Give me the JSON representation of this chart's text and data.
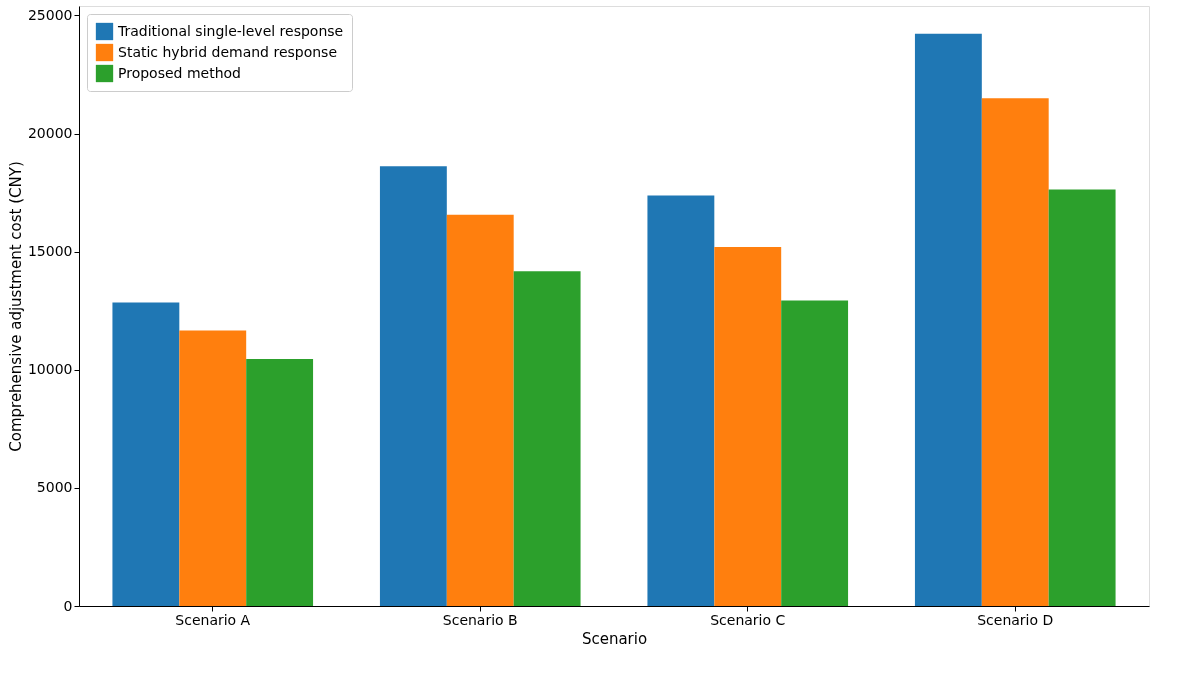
{
  "chart_data": {
    "type": "bar",
    "xlabel": "Scenario",
    "ylabel": "Comprehensive adjustment cost (CNY)",
    "categories": [
      "Scenario A",
      "Scenario B",
      "Scenario C",
      "Scenario D"
    ],
    "series": [
      {
        "name": "Traditional single-level response",
        "color": "#1f77b4",
        "values": [
          12850,
          18620,
          17380,
          24220
        ]
      },
      {
        "name": "Static hybrid demand response",
        "color": "#ff7f0e",
        "values": [
          11660,
          16560,
          15200,
          21500
        ]
      },
      {
        "name": "Proposed method",
        "color": "#2ca02c",
        "values": [
          10460,
          14170,
          12930,
          17630
        ]
      }
    ],
    "ylim": [
      0,
      25400
    ],
    "yticks": [
      0,
      5000,
      10000,
      15000,
      20000,
      25000
    ],
    "grid": false,
    "legend": "top left"
  }
}
